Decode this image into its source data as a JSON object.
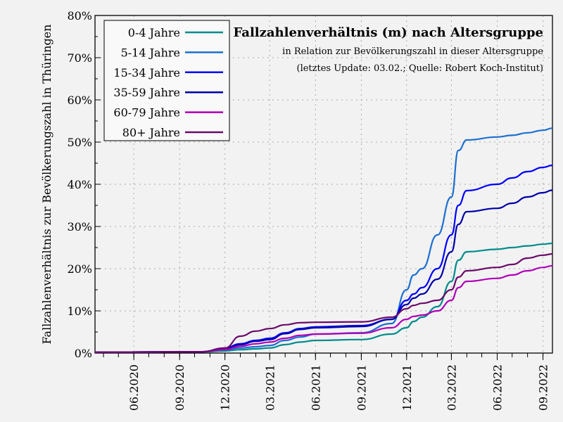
{
  "chart_data": {
    "type": "line",
    "title": "Fallzahlenverhältnis (m) nach Altersgruppe",
    "subtitle": [
      "in Relation zur Bevölkerungszahl in dieser Altersgruppe",
      "(letztes Update: 03.02.; Quelle: Robert Koch-Institut)"
    ],
    "ylabel": "Fallzahlenverhältnis zur Bevölkerungszahl in Thüringen",
    "xlabel": "",
    "xlim": [
      "2020-03-15",
      "2022-09-20"
    ],
    "ylim": [
      0,
      80
    ],
    "y_ticks": [
      "0%",
      "10%",
      "20%",
      "30%",
      "40%",
      "50%",
      "60%",
      "70%",
      "80%"
    ],
    "x_ticks": [
      {
        "date": "2020-06-01",
        "label": "06.2020"
      },
      {
        "date": "2020-09-01",
        "label": "09.2020"
      },
      {
        "date": "2020-12-01",
        "label": "12.2020"
      },
      {
        "date": "2021-03-01",
        "label": "03.2021"
      },
      {
        "date": "2021-06-01",
        "label": "06.2021"
      },
      {
        "date": "2021-09-01",
        "label": "09.2021"
      },
      {
        "date": "2021-12-01",
        "label": "12.2021"
      },
      {
        "date": "2022-03-01",
        "label": "03.2022"
      },
      {
        "date": "2022-06-01",
        "label": "06.2022"
      },
      {
        "date": "2022-09-01",
        "label": "09.2022"
      }
    ],
    "grid": true,
    "legend_position": "top-left",
    "x": [
      "2020-03-15",
      "2020-10-15",
      "2020-12-01",
      "2021-01-01",
      "2021-02-01",
      "2021-03-01",
      "2021-04-01",
      "2021-05-01",
      "2021-06-01",
      "2021-09-01",
      "2021-11-01",
      "2021-12-01",
      "2021-12-15",
      "2022-01-01",
      "2022-02-01",
      "2022-03-01",
      "2022-03-15",
      "2022-04-01",
      "2022-06-01",
      "2022-07-01",
      "2022-08-01",
      "2022-09-01",
      "2022-09-20"
    ],
    "series": [
      {
        "name": "0-4 Jahre",
        "color": "#008b8b",
        "values": [
          0.2,
          0.3,
          0.5,
          0.8,
          1.0,
          1.2,
          2.0,
          2.6,
          3.0,
          3.2,
          4.5,
          6,
          7.5,
          8.5,
          11,
          17,
          22,
          24,
          24.6,
          25,
          25.4,
          25.8,
          26
        ]
      },
      {
        "name": "5-14 Jahre",
        "color": "#1c6fd1",
        "values": [
          0.2,
          0.3,
          0.8,
          1.2,
          1.5,
          1.8,
          3.0,
          3.8,
          4.5,
          4.8,
          7,
          15,
          18.5,
          20,
          28,
          37,
          48,
          50.5,
          51.2,
          51.6,
          52.2,
          52.8,
          53.3
        ]
      },
      {
        "name": "15-34 Jahre",
        "color": "#0000ff",
        "values": [
          0.2,
          0.3,
          1.2,
          2.2,
          3.0,
          3.5,
          4.8,
          5.8,
          6.2,
          6.5,
          8,
          12.5,
          14,
          15.5,
          20,
          28,
          35,
          38.5,
          40,
          41.5,
          43,
          44,
          44.5
        ]
      },
      {
        "name": "35-59 Jahre",
        "color": "#0000a8",
        "values": [
          0.2,
          0.3,
          1.0,
          2.0,
          2.8,
          3.2,
          4.6,
          5.6,
          6.0,
          6.3,
          8,
          11.5,
          13,
          14,
          17.5,
          24,
          30.5,
          33.5,
          34.3,
          35.5,
          37,
          38,
          38.6
        ]
      },
      {
        "name": "60-79 Jahre",
        "color": "#b000b8",
        "values": [
          0.2,
          0.3,
          0.8,
          1.6,
          2.2,
          2.6,
          3.5,
          4.2,
          4.5,
          4.7,
          6,
          8,
          8.7,
          9,
          10,
          12.5,
          15.5,
          17,
          17.7,
          18.5,
          19.5,
          20.3,
          20.7
        ]
      },
      {
        "name": "80+ Jahre",
        "color": "#6a0a6a",
        "values": [
          0.2,
          0.3,
          1.2,
          4,
          5.2,
          5.8,
          6.7,
          7.2,
          7.3,
          7.4,
          8.5,
          10.5,
          11.3,
          11.8,
          12.5,
          15,
          18,
          19.5,
          20.3,
          21,
          22.5,
          23.2,
          23.5
        ]
      }
    ]
  }
}
